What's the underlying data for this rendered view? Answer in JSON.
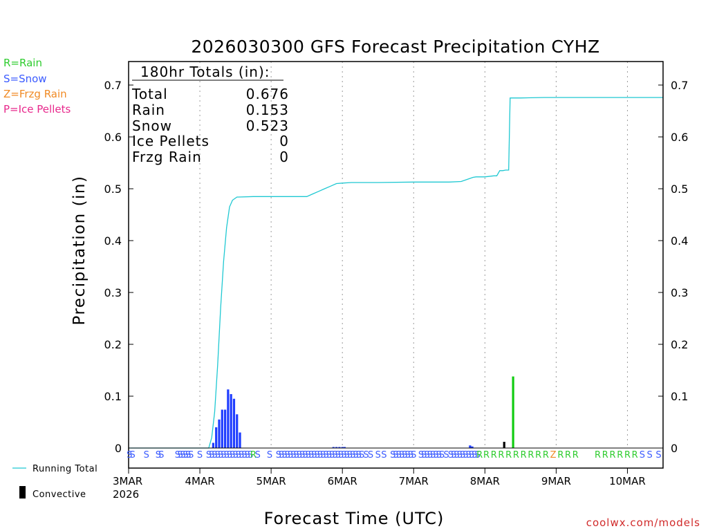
{
  "chart_data": {
    "type": "bar+line",
    "title": "2026030300 GFS Forecast Precipitation CYHZ",
    "ylabel": "Precipitation (in)",
    "xlabel": "Forecast Time (UTC)",
    "watermark": "coolwx.com/models",
    "x_unit": "hours since 03MAR 00Z",
    "xlim": [
      0,
      180
    ],
    "ylim": [
      0,
      0.75
    ],
    "y_ticks": [
      "0",
      "0.1",
      "0.2",
      "0.3",
      "0.4",
      "0.5",
      "0.6",
      "0.7"
    ],
    "y_tick_values": [
      0,
      0.1,
      0.2,
      0.3,
      0.4,
      0.5,
      0.6,
      0.7
    ],
    "x_ticks": [
      {
        "hour": 0,
        "label": "3MAR"
      },
      {
        "hour": 24,
        "label": "4MAR"
      },
      {
        "hour": 48,
        "label": "5MAR"
      },
      {
        "hour": 72,
        "label": "6MAR"
      },
      {
        "hour": 96,
        "label": "7MAR"
      },
      {
        "hour": 120,
        "label": "8MAR"
      },
      {
        "hour": 144,
        "label": "9MAR"
      },
      {
        "hour": 168,
        "label": "10MAR"
      }
    ],
    "year_label": "2026",
    "type_legend": [
      {
        "text": "R=Rain",
        "color": "#2ecc2e"
      },
      {
        "text": "S=Snow",
        "color": "#3b5bff"
      },
      {
        "text": "Z=Frzg Rain",
        "color": "#f08a24"
      },
      {
        "text": "P=Ice Pellets",
        "color": "#e8288c"
      }
    ],
    "totals": {
      "header": "180hr Totals (in):",
      "rows": [
        {
          "label": "Total",
          "value": "0.676"
        },
        {
          "label": "Rain",
          "value": "0.153"
        },
        {
          "label": "Snow",
          "value": "0.523"
        },
        {
          "label": "Ice Pellets",
          "value": "0"
        },
        {
          "label": "Frzg Rain",
          "value": "0"
        }
      ]
    },
    "legend": {
      "running_total": "Running Total",
      "convective": "Convective"
    },
    "colors": {
      "snow": "#1f3dff",
      "rain": "#12cc12",
      "frzg": "#f08a24",
      "convective": "#000000",
      "running_total": "#1ec8d2",
      "grid": "#9a9a9a"
    },
    "running_total": {
      "x": [
        0,
        27,
        28,
        29,
        30,
        31,
        32,
        33,
        34,
        35,
        36,
        36.5,
        37,
        42,
        60,
        62,
        64,
        66,
        68,
        70,
        72,
        75,
        84,
        96,
        108,
        112,
        114,
        116,
        117,
        120,
        123,
        124,
        125,
        126,
        127,
        128,
        128.5,
        129,
        130,
        132,
        140,
        144,
        156,
        168,
        180
      ],
      "y": [
        0,
        0,
        0.02,
        0.07,
        0.16,
        0.27,
        0.36,
        0.425,
        0.465,
        0.478,
        0.482,
        0.484,
        0.484,
        0.485,
        0.485,
        0.49,
        0.495,
        0.5,
        0.505,
        0.51,
        0.511,
        0.512,
        0.512,
        0.513,
        0.513,
        0.514,
        0.518,
        0.522,
        0.523,
        0.523,
        0.525,
        0.525,
        0.535,
        0.535,
        0.536,
        0.536,
        0.675,
        0.675,
        0.675,
        0.675,
        0.676,
        0.676,
        0.676,
        0.676,
        0.676
      ]
    },
    "bars": {
      "width_hours": 0.75,
      "snow": {
        "x": [
          28.5,
          29.5,
          30.5,
          31.5,
          32.5,
          33.5,
          34.5,
          35.5,
          36.5,
          37.5,
          69,
          70,
          71,
          72,
          72.75,
          115,
          115.75
        ],
        "y": [
          0.01,
          0.04,
          0.055,
          0.074,
          0.074,
          0.113,
          0.104,
          0.095,
          0.065,
          0.03,
          0.002,
          0.002,
          0.002,
          0.002,
          0.002,
          0.005,
          0.003
        ]
      },
      "rain": {
        "x": [
          129.5
        ],
        "y": [
          0.138
        ]
      },
      "convective": {
        "x": [
          126.5
        ],
        "y": [
          0.012
        ]
      }
    },
    "ptype_row": [
      {
        "hour": 0.3,
        "c": "S"
      },
      {
        "hour": 1.3,
        "c": "S"
      },
      {
        "hour": 6,
        "c": "S"
      },
      {
        "hour": 10,
        "c": "S"
      },
      {
        "hour": 11,
        "c": "S"
      },
      {
        "hour": 16.5,
        "c": "S"
      },
      {
        "hour": 17.4,
        "c": "S"
      },
      {
        "hour": 18.3,
        "c": "S"
      },
      {
        "hour": 19.2,
        "c": "S"
      },
      {
        "hour": 20.1,
        "c": "S"
      },
      {
        "hour": 21,
        "c": "S"
      },
      {
        "hour": 24,
        "c": "S"
      },
      {
        "hour": 27,
        "c": "S"
      },
      {
        "hour": 28,
        "c": "S"
      },
      {
        "hour": 29,
        "c": "S"
      },
      {
        "hour": 30,
        "c": "S"
      },
      {
        "hour": 31,
        "c": "S"
      },
      {
        "hour": 32,
        "c": "S"
      },
      {
        "hour": 33,
        "c": "S"
      },
      {
        "hour": 34,
        "c": "S"
      },
      {
        "hour": 35,
        "c": "S"
      },
      {
        "hour": 36,
        "c": "S"
      },
      {
        "hour": 37,
        "c": "S"
      },
      {
        "hour": 38,
        "c": "S"
      },
      {
        "hour": 39,
        "c": "S"
      },
      {
        "hour": 40,
        "c": "S"
      },
      {
        "hour": 41,
        "c": "S"
      },
      {
        "hour": 42,
        "c": "R"
      },
      {
        "hour": 43.5,
        "c": "S"
      },
      {
        "hour": 47.5,
        "c": "S"
      },
      {
        "hour": 50.5,
        "c": "S"
      },
      {
        "hour": 51.5,
        "c": "S"
      },
      {
        "hour": 52.5,
        "c": "S"
      },
      {
        "hour": 53.5,
        "c": "S"
      },
      {
        "hour": 54.5,
        "c": "S"
      },
      {
        "hour": 55.5,
        "c": "S"
      },
      {
        "hour": 56.5,
        "c": "S"
      },
      {
        "hour": 57.5,
        "c": "S"
      },
      {
        "hour": 58.5,
        "c": "S"
      },
      {
        "hour": 59.5,
        "c": "S"
      },
      {
        "hour": 60.5,
        "c": "S"
      },
      {
        "hour": 61.5,
        "c": "S"
      },
      {
        "hour": 62.5,
        "c": "S"
      },
      {
        "hour": 63.5,
        "c": "S"
      },
      {
        "hour": 64.5,
        "c": "S"
      },
      {
        "hour": 65.5,
        "c": "S"
      },
      {
        "hour": 66.5,
        "c": "S"
      },
      {
        "hour": 67.5,
        "c": "S"
      },
      {
        "hour": 68.5,
        "c": "S"
      },
      {
        "hour": 69.5,
        "c": "S"
      },
      {
        "hour": 70.5,
        "c": "S"
      },
      {
        "hour": 71.5,
        "c": "S"
      },
      {
        "hour": 72.5,
        "c": "S"
      },
      {
        "hour": 73.5,
        "c": "S"
      },
      {
        "hour": 74.5,
        "c": "S"
      },
      {
        "hour": 75.5,
        "c": "S"
      },
      {
        "hour": 76.5,
        "c": "S"
      },
      {
        "hour": 77.5,
        "c": "S"
      },
      {
        "hour": 78.5,
        "c": "S"
      },
      {
        "hour": 80,
        "c": "S"
      },
      {
        "hour": 81.5,
        "c": "S"
      },
      {
        "hour": 84,
        "c": "S"
      },
      {
        "hour": 86,
        "c": "S"
      },
      {
        "hour": 89,
        "c": "S"
      },
      {
        "hour": 90,
        "c": "S"
      },
      {
        "hour": 91,
        "c": "S"
      },
      {
        "hour": 92,
        "c": "S"
      },
      {
        "hour": 93,
        "c": "S"
      },
      {
        "hour": 94,
        "c": "S"
      },
      {
        "hour": 95,
        "c": "S"
      },
      {
        "hour": 96,
        "c": "S"
      },
      {
        "hour": 98.5,
        "c": "S"
      },
      {
        "hour": 99.5,
        "c": "S"
      },
      {
        "hour": 100.5,
        "c": "S"
      },
      {
        "hour": 101.5,
        "c": "S"
      },
      {
        "hour": 102.5,
        "c": "S"
      },
      {
        "hour": 103.5,
        "c": "S"
      },
      {
        "hour": 104.5,
        "c": "S"
      },
      {
        "hour": 105.5,
        "c": "S"
      },
      {
        "hour": 107,
        "c": "S"
      },
      {
        "hour": 108.5,
        "c": "S"
      },
      {
        "hour": 109.5,
        "c": "S"
      },
      {
        "hour": 110.5,
        "c": "S"
      },
      {
        "hour": 111.5,
        "c": "S"
      },
      {
        "hour": 112.5,
        "c": "S"
      },
      {
        "hour": 113.5,
        "c": "S"
      },
      {
        "hour": 114.5,
        "c": "S"
      },
      {
        "hour": 115.5,
        "c": "S"
      },
      {
        "hour": 116.5,
        "c": "S"
      },
      {
        "hour": 117.5,
        "c": "S"
      },
      {
        "hour": 118.2,
        "c": "R"
      },
      {
        "hour": 120.5,
        "c": "R"
      },
      {
        "hour": 123,
        "c": "R"
      },
      {
        "hour": 125.5,
        "c": "R"
      },
      {
        "hour": 128,
        "c": "R"
      },
      {
        "hour": 130.5,
        "c": "R"
      },
      {
        "hour": 133,
        "c": "R"
      },
      {
        "hour": 135.5,
        "c": "R"
      },
      {
        "hour": 138,
        "c": "R"
      },
      {
        "hour": 140.5,
        "c": "R"
      },
      {
        "hour": 143,
        "c": "Z"
      },
      {
        "hour": 145.5,
        "c": "R"
      },
      {
        "hour": 148,
        "c": "R"
      },
      {
        "hour": 150.5,
        "c": "R"
      },
      {
        "hour": 158,
        "c": "R"
      },
      {
        "hour": 160.5,
        "c": "R"
      },
      {
        "hour": 163,
        "c": "R"
      },
      {
        "hour": 165.5,
        "c": "R"
      },
      {
        "hour": 168,
        "c": "R"
      },
      {
        "hour": 170.5,
        "c": "R"
      },
      {
        "hour": 173,
        "c": "S"
      },
      {
        "hour": 175.5,
        "c": "S"
      },
      {
        "hour": 178.5,
        "c": "S"
      }
    ]
  }
}
